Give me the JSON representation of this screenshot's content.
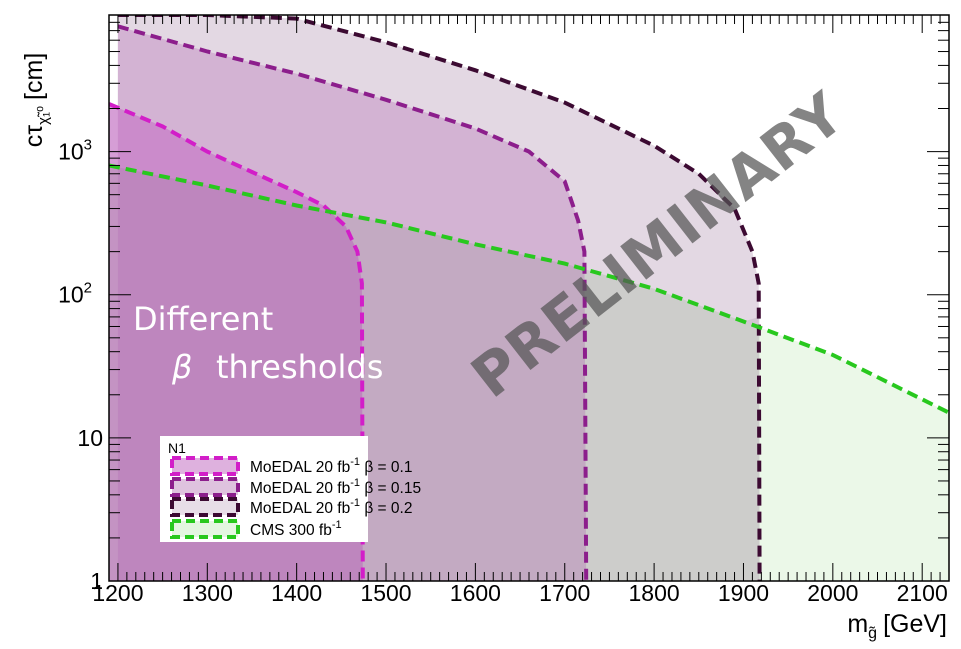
{
  "chart_data": {
    "type": "area",
    "xlabel": "m",
    "xlabel_sub": "g̃",
    "xlabel_unit": "[GeV]",
    "ylabel": "cτ",
    "ylabel_sub": "χ̃₁⁰",
    "ylabel_unit": "[cm]",
    "y_scale": "log",
    "xlim": [
      1190,
      2130
    ],
    "ylim": [
      1,
      9000
    ],
    "x_ticks": [
      "1200",
      "1300",
      "1400",
      "1500",
      "1600",
      "1700",
      "1800",
      "1900",
      "2000",
      "2100"
    ],
    "y_ticks": [
      {
        "base": "1",
        "exp": ""
      },
      {
        "base": "10",
        "exp": ""
      },
      {
        "base": "10",
        "exp": "2"
      },
      {
        "base": "10",
        "exp": "3"
      }
    ],
    "legend_title": "N1",
    "legend": [
      {
        "label": "MoEDAL 20 fb",
        "sup": "-1",
        "beta": " β = 0.1"
      },
      {
        "label": "MoEDAL 20 fb",
        "sup": "-1",
        "beta": " β = 0.15"
      },
      {
        "label": "MoEDAL 20 fb",
        "sup": "-1",
        "beta": " β = 0.2"
      },
      {
        "label": "CMS 300 fb",
        "sup": "-1",
        "beta": ""
      }
    ],
    "series": [
      {
        "color": "#d21ec8",
        "fill": "#c87dc8",
        "points": [
          [
            1190,
            2150
          ],
          [
            1250,
            1500
          ],
          [
            1300,
            1000
          ],
          [
            1350,
            720
          ],
          [
            1400,
            520
          ],
          [
            1430,
            420
          ],
          [
            1455,
            300
          ],
          [
            1468,
            200
          ],
          [
            1473,
            120
          ],
          [
            1474,
            1
          ]
        ]
      },
      {
        "color": "#8c1e8c",
        "fill": "#c89bc8",
        "points": [
          [
            1200,
            7500
          ],
          [
            1300,
            5000
          ],
          [
            1400,
            3500
          ],
          [
            1500,
            2300
          ],
          [
            1600,
            1450
          ],
          [
            1660,
            1000
          ],
          [
            1700,
            620
          ],
          [
            1715,
            330
          ],
          [
            1722,
            200
          ],
          [
            1724,
            1
          ]
        ]
      },
      {
        "color": "#3c0a32",
        "fill": "#d7c8d7",
        "points": [
          [
            1200,
            9000
          ],
          [
            1300,
            9000
          ],
          [
            1400,
            8500
          ],
          [
            1500,
            5800
          ],
          [
            1600,
            3700
          ],
          [
            1700,
            2200
          ],
          [
            1800,
            1100
          ],
          [
            1850,
            700
          ],
          [
            1890,
            400
          ],
          [
            1910,
            200
          ],
          [
            1917,
            120
          ],
          [
            1918,
            1
          ]
        ]
      },
      {
        "color": "#28c81e",
        "fill": "#d2f0cd",
        "points": [
          [
            1190,
            800
          ],
          [
            1300,
            580
          ],
          [
            1400,
            420
          ],
          [
            1500,
            320
          ],
          [
            1600,
            225
          ],
          [
            1700,
            165
          ],
          [
            1800,
            110
          ],
          [
            1900,
            65
          ],
          [
            2000,
            38
          ],
          [
            2130,
            15
          ]
        ]
      }
    ],
    "annotations": [
      "Different",
      "β",
      "thresholds"
    ],
    "watermark": "PRELIMINARY"
  }
}
